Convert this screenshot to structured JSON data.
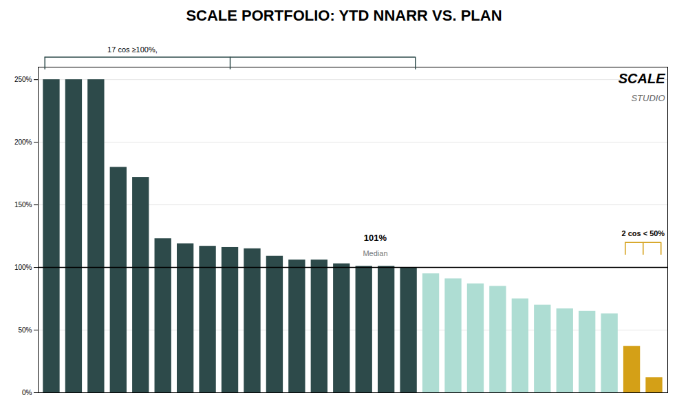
{
  "chart_data": {
    "type": "bar",
    "title": "SCALE PORTFOLIO: YTD NNARR VS. PLAN",
    "categories": [
      null,
      null,
      null,
      null,
      null,
      null,
      null,
      null,
      null,
      null,
      null,
      null,
      null,
      null,
      null,
      null,
      null,
      null,
      null,
      null,
      null,
      null,
      null,
      null,
      null,
      null,
      null,
      null
    ],
    "values": [
      250,
      250,
      250,
      180,
      172,
      123,
      119,
      117,
      116,
      115,
      109,
      106,
      106,
      103,
      101,
      101,
      100,
      95,
      91,
      87,
      85,
      75,
      70,
      67,
      65,
      63,
      37,
      12
    ],
    "colors": [
      "#2d4a4a",
      "#2d4a4a",
      "#2d4a4a",
      "#2d4a4a",
      "#2d4a4a",
      "#2d4a4a",
      "#2d4a4a",
      "#2d4a4a",
      "#2d4a4a",
      "#2d4a4a",
      "#2d4a4a",
      "#2d4a4a",
      "#2d4a4a",
      "#2d4a4a",
      "#2d4a4a",
      "#2d4a4a",
      "#2d4a4a",
      "#aeddd3",
      "#aeddd3",
      "#aeddd3",
      "#aeddd3",
      "#aeddd3",
      "#aeddd3",
      "#aeddd3",
      "#aeddd3",
      "#aeddd3",
      "#d4a017",
      "#d4a017"
    ],
    "ylim": [
      0,
      260
    ],
    "yticks": [
      {
        "value": 0,
        "label": "0%"
      },
      {
        "value": 50,
        "label": "50%"
      },
      {
        "value": 100,
        "label": "100%"
      },
      {
        "value": 150,
        "label": "150%"
      },
      {
        "value": 200,
        "label": "200%"
      },
      {
        "value": 250,
        "label": "250%"
      }
    ],
    "grid": true,
    "tick_labels": "y",
    "hline": 100,
    "median": 101,
    "annotations": [
      "101%",
      "Median",
      "17 cos ≥100%,",
      "2 cos < 50%",
      "SCALE",
      "STUDIO"
    ]
  }
}
